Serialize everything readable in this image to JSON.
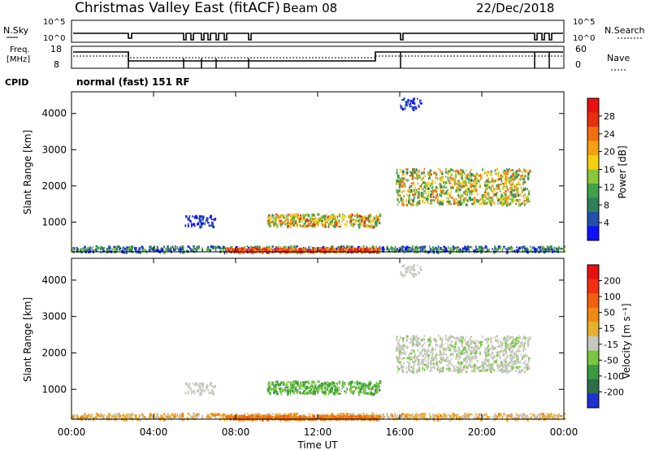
{
  "header": {
    "station": "Christmas Valley East (fitACF)",
    "beam": "Beam 08",
    "date": "22/Dec/2018"
  },
  "status_panel": {
    "nsky_label": "N.Sky",
    "nsky_ticks": [
      "10^5",
      "10^0"
    ],
    "nsearch_label": "N.Search",
    "nsearch_ticks": [
      "10^5",
      "10^0"
    ],
    "freq_label_1": "Freq.",
    "freq_label_2": "[MHz]",
    "freq_ticks": [
      "18",
      "8"
    ],
    "nave_label": "Nave",
    "nave_ticks": [
      "60",
      "0"
    ],
    "cpid_label": "CPID",
    "cpid_value": "normal (fast) 151 RF"
  },
  "chart_data": [
    {
      "type": "heatmap",
      "name": "power",
      "ylabel": "Slant Range [km]",
      "xlabel": "Time UT",
      "xlim": [
        0,
        24
      ],
      "ylim": [
        180,
        4600
      ],
      "y_ticks": [
        "1000",
        "2000",
        "3000",
        "4000"
      ],
      "x_ticks": [
        "00:00",
        "04:00",
        "08:00",
        "12:00",
        "16:00",
        "20:00",
        "00:00"
      ],
      "colorbar": {
        "label": "Power [dB]",
        "ticks": [
          "4",
          "8",
          "12",
          "16",
          "20",
          "24",
          "28"
        ],
        "colors": [
          "#1010ff",
          "#2050a8",
          "#2f7f5a",
          "#3fa14a",
          "#8cc63a",
          "#f4d010",
          "#f5a010",
          "#f07010",
          "#e83010",
          "#e81010"
        ]
      }
    },
    {
      "type": "heatmap",
      "name": "velocity",
      "ylabel": "Slant Range [km]",
      "xlabel": "Time UT",
      "xlim": [
        0,
        24
      ],
      "ylim": [
        180,
        4600
      ],
      "y_ticks": [
        "1000",
        "2000",
        "3000",
        "4000"
      ],
      "x_ticks": [
        "00:00",
        "04:00",
        "08:00",
        "12:00",
        "16:00",
        "20:00",
        "00:00"
      ],
      "colorbar": {
        "label": "Velocity [m s⁻¹]",
        "ticks": [
          "200",
          "100",
          "50",
          "15",
          "-15",
          "-50",
          "-100",
          "-200"
        ],
        "colors": [
          "#2030d0",
          "#2d6e4a",
          "#3a9a40",
          "#7ac642",
          "#c8c8c0",
          "#e8b030",
          "#f08a10",
          "#f06010",
          "#f03010",
          "#e81010"
        ]
      }
    }
  ]
}
